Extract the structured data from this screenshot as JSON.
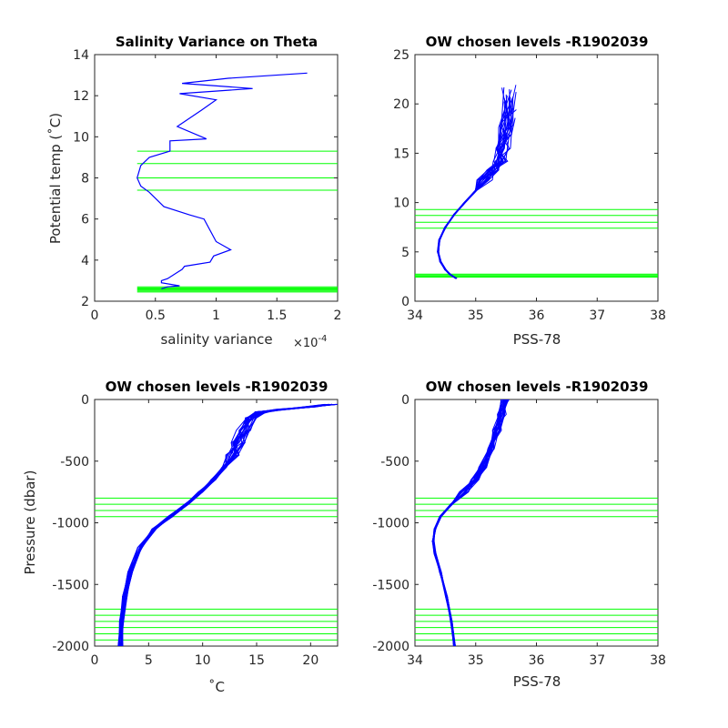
{
  "chart_data": [
    {
      "type": "line",
      "title": "Salinity Variance on Theta",
      "xlabel": "salinity variance",
      "x_exponent_label": "×10",
      "x_exponent_sup": "-4",
      "ylabel": "Potential temp (˚C)",
      "xlim": [
        0,
        2
      ],
      "ylim": [
        2,
        14
      ],
      "xticks": [
        0,
        0.5,
        1,
        1.5,
        2
      ],
      "xticklabels": [
        "0",
        "0.5",
        "1",
        "1.5",
        "2"
      ],
      "yticks": [
        2,
        4,
        6,
        8,
        10,
        12,
        14
      ],
      "yticklabels": [
        "2",
        "4",
        "6",
        "8",
        "10",
        "12",
        "14"
      ],
      "series": [
        {
          "color": "#0000ff",
          "x": [
            1.75,
            1.1,
            0.72,
            1.3,
            0.7,
            1.0,
            0.88,
            0.68,
            0.92,
            0.62,
            0.62,
            0.45,
            0.38,
            0.35,
            0.38,
            0.45,
            0.57,
            0.78,
            0.9,
            1.0,
            1.12,
            0.98,
            0.95,
            0.74,
            0.72,
            0.68,
            0.6,
            0.55,
            0.55,
            0.7,
            0.6,
            0.55
          ],
          "y": [
            13.1,
            12.85,
            12.6,
            12.35,
            12.1,
            11.8,
            11.3,
            10.5,
            9.9,
            9.8,
            9.3,
            9.0,
            8.6,
            8.0,
            7.6,
            7.3,
            6.6,
            6.2,
            6.0,
            4.9,
            4.5,
            4.2,
            3.9,
            3.7,
            3.55,
            3.4,
            3.1,
            3.0,
            2.9,
            2.75,
            2.7,
            2.6
          ]
        }
      ],
      "hlines": {
        "color": "#00ff00",
        "xrange": [
          0.35,
          2
        ],
        "y": [
          9.3,
          8.7,
          8.0,
          7.4,
          2.45,
          2.5,
          2.55,
          2.6,
          2.65,
          2.7
        ]
      }
    },
    {
      "type": "line",
      "title": "OW chosen levels -R1902039",
      "xlabel": "PSS-78",
      "ylabel": "",
      "xlim": [
        34,
        38
      ],
      "ylim": [
        0,
        25
      ],
      "xticks": [
        34,
        35,
        36,
        37,
        38
      ],
      "xticklabels": [
        "34",
        "35",
        "36",
        "37",
        "38"
      ],
      "yticks": [
        0,
        5,
        10,
        15,
        20,
        25
      ],
      "yticklabels": [
        "0",
        "5",
        "10",
        "15",
        "20",
        "25"
      ],
      "profile_template": {
        "x": [
          34.68,
          34.58,
          34.5,
          34.42,
          34.38,
          34.4,
          34.5,
          34.65,
          34.82,
          35.0,
          35.15,
          35.3,
          35.4,
          35.45,
          35.5,
          35.55
        ],
        "y": [
          2.3,
          2.7,
          3.2,
          4.0,
          5.0,
          6.2,
          7.5,
          8.8,
          10.0,
          11.2,
          12.3,
          13.3,
          14.2,
          15.5,
          17.5,
          19.5
        ]
      },
      "profile_count": 22,
      "color": "#0000ff",
      "hlines": {
        "color": "#00ff00",
        "xrange": [
          34,
          38
        ],
        "y": [
          9.3,
          8.7,
          8.0,
          7.4,
          2.45,
          2.55,
          2.65,
          2.75
        ]
      }
    },
    {
      "type": "line",
      "title": "OW chosen levels -R1902039",
      "xlabel": "˚C",
      "ylabel": "Pressure (dbar)",
      "xlim": [
        0,
        22.5
      ],
      "ylim": [
        -2000,
        0
      ],
      "xticks": [
        0,
        5,
        10,
        15,
        20
      ],
      "xticklabels": [
        "0",
        "5",
        "10",
        "15",
        "20"
      ],
      "yticks": [
        -2000,
        -1500,
        -1000,
        -500,
        0
      ],
      "yticklabels": [
        "-2000",
        "-1500",
        "-1000",
        "-500",
        "0"
      ],
      "profile_template": {
        "x": [
          2.4,
          2.5,
          2.8,
          3.3,
          4.2,
          5.5,
          7.0,
          8.5,
          9.8,
          11.0,
          12.0,
          12.8,
          13.3,
          13.8,
          14.5,
          15.5,
          17.5,
          20.0,
          22.0
        ],
        "y": [
          -2000,
          -1800,
          -1600,
          -1400,
          -1200,
          -1050,
          -950,
          -850,
          -750,
          -650,
          -550,
          -450,
          -350,
          -250,
          -150,
          -100,
          -80,
          -60,
          -40
        ]
      },
      "profile_count": 22,
      "color": "#0000ff",
      "hlines": {
        "color": "#00ff00",
        "xrange": [
          0,
          22.5
        ],
        "y": [
          -800,
          -850,
          -900,
          -950,
          -1700,
          -1750,
          -1800,
          -1850,
          -1900,
          -1950
        ]
      }
    },
    {
      "type": "line",
      "title": "OW chosen levels -R1902039",
      "xlabel": "PSS-78",
      "ylabel": "",
      "xlim": [
        34,
        38
      ],
      "ylim": [
        -2000,
        0
      ],
      "xticks": [
        34,
        35,
        36,
        37,
        38
      ],
      "xticklabels": [
        "34",
        "35",
        "36",
        "37",
        "38"
      ],
      "yticks": [
        -2000,
        -1500,
        -1000,
        -500,
        0
      ],
      "yticklabels": [
        "-2000",
        "-1500",
        "-1000",
        "-500",
        "0"
      ],
      "profile_template": {
        "x": [
          34.65,
          34.6,
          34.52,
          34.42,
          34.33,
          34.3,
          34.33,
          34.42,
          34.6,
          34.8,
          34.98,
          35.12,
          35.25,
          35.35,
          35.42,
          35.48
        ],
        "y": [
          -2000,
          -1800,
          -1600,
          -1400,
          -1250,
          -1150,
          -1050,
          -950,
          -850,
          -750,
          -650,
          -550,
          -400,
          -250,
          -120,
          0
        ]
      },
      "profile_count": 22,
      "color": "#0000ff",
      "hlines": {
        "color": "#00ff00",
        "xrange": [
          34,
          38
        ],
        "y": [
          -800,
          -850,
          -900,
          -950,
          -1700,
          -1750,
          -1800,
          -1850,
          -1900,
          -1950
        ]
      }
    }
  ]
}
